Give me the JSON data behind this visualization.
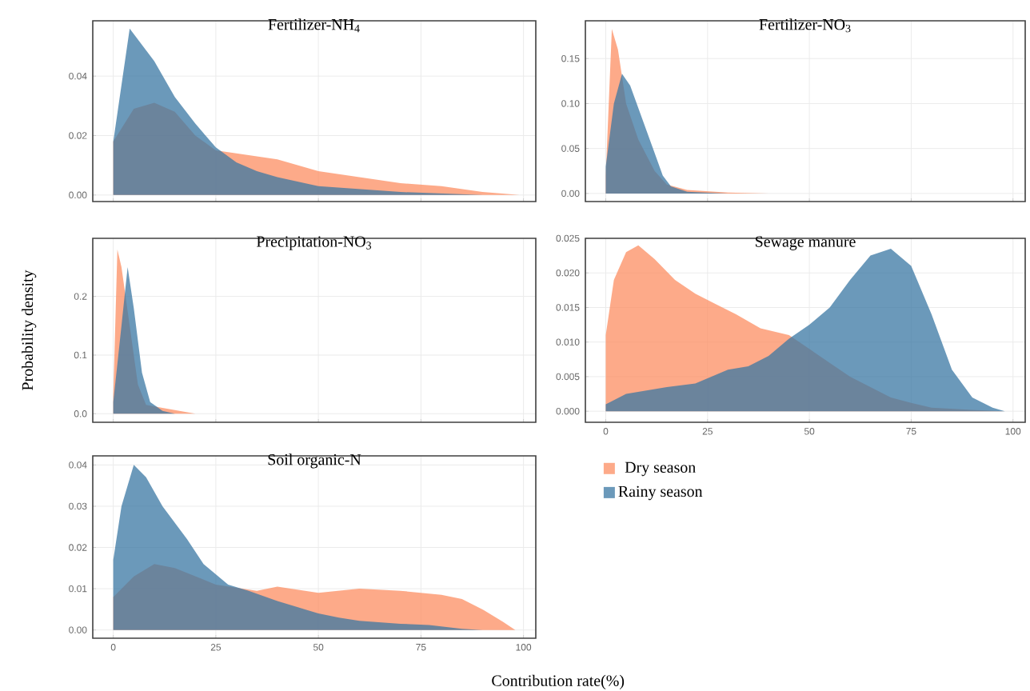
{
  "chart_data": [
    {
      "type": "area",
      "title": "Fertilizer-NH$_{4}$",
      "xlim": [
        -5,
        103
      ],
      "ylim": [
        -0.0022,
        0.0586
      ],
      "xticks": [
        0,
        25,
        50,
        75,
        100
      ],
      "yticks": [
        {
          "value": 0,
          "label": "0.00"
        },
        {
          "value": 0.02,
          "label": "0.02"
        },
        {
          "value": 0.04,
          "label": "0.04"
        }
      ],
      "tick_labels": "y",
      "grid": true,
      "series": [
        {
          "color": "#fc8d62",
          "x": [
            0,
            5,
            10,
            15,
            20,
            25,
            30,
            40,
            50,
            60,
            70,
            80,
            90,
            99
          ],
          "values": [
            0.018,
            0.029,
            0.031,
            0.028,
            0.02,
            0.015,
            0.014,
            0.012,
            0.008,
            0.006,
            0.004,
            0.003,
            0.001,
            0
          ]
        },
        {
          "color": "#3a77a3",
          "x": [
            0,
            4,
            10,
            15,
            20,
            25,
            30,
            35,
            40,
            50,
            60,
            70,
            80,
            90
          ],
          "values": [
            0.018,
            0.056,
            0.045,
            0.033,
            0.024,
            0.016,
            0.011,
            0.008,
            0.006,
            0.003,
            0.002,
            0.001,
            0.0005,
            0
          ]
        }
      ]
    },
    {
      "type": "area",
      "title": "Fertilizer-NO$_{3}$",
      "xlim": [
        -5,
        103
      ],
      "ylim": [
        -0.009,
        0.192
      ],
      "xticks": [
        0,
        25,
        50,
        75,
        100
      ],
      "yticks": [
        {
          "value": 0,
          "label": "0.00"
        },
        {
          "value": 0.05,
          "label": "0.05"
        },
        {
          "value": 0.1,
          "label": "0.10"
        },
        {
          "value": 0.15,
          "label": "0.15"
        }
      ],
      "tick_labels": "y",
      "grid": true,
      "series": [
        {
          "color": "#fc8d62",
          "x": [
            0,
            1.5,
            3,
            5,
            8,
            12,
            15,
            20,
            30,
            40
          ],
          "values": [
            0.02,
            0.183,
            0.16,
            0.1,
            0.06,
            0.025,
            0.01,
            0.004,
            0.001,
            0
          ]
        },
        {
          "color": "#3a77a3",
          "x": [
            0,
            2,
            4,
            6,
            8,
            10,
            12,
            14,
            16,
            20,
            30
          ],
          "values": [
            0.03,
            0.1,
            0.133,
            0.12,
            0.095,
            0.07,
            0.045,
            0.02,
            0.008,
            0.002,
            0
          ]
        }
      ]
    },
    {
      "type": "area",
      "title": "Precipitation-NO$_{3}$",
      "ylabel": "Probability density",
      "xlim": [
        -5,
        103
      ],
      "ylim": [
        -0.0146,
        0.299
      ],
      "xticks": [
        0,
        25,
        50,
        75,
        100
      ],
      "yticks": [
        {
          "value": 0,
          "label": "0.0"
        },
        {
          "value": 0.1,
          "label": "0.1"
        },
        {
          "value": 0.2,
          "label": "0.2"
        }
      ],
      "tick_labels": "y",
      "grid": true,
      "series": [
        {
          "color": "#fc8d62",
          "x": [
            0,
            1,
            2,
            4,
            6,
            8,
            12,
            20
          ],
          "values": [
            0.03,
            0.28,
            0.25,
            0.15,
            0.05,
            0.015,
            0.01,
            0
          ]
        },
        {
          "color": "#3a77a3",
          "x": [
            0,
            2,
            3.5,
            5,
            7,
            9,
            12,
            15
          ],
          "values": [
            0.02,
            0.15,
            0.25,
            0.18,
            0.07,
            0.02,
            0.005,
            0
          ]
        }
      ]
    },
    {
      "type": "area",
      "title": "Sewage manure",
      "xlim": [
        -5,
        103
      ],
      "ylim": [
        -0.0016,
        0.025
      ],
      "xticks": [
        0,
        25,
        50,
        75,
        100
      ],
      "yticks": [
        {
          "value": 0,
          "label": "0.000"
        },
        {
          "value": 0.005,
          "label": "0.005"
        },
        {
          "value": 0.01,
          "label": "0.010"
        },
        {
          "value": 0.015,
          "label": "0.015"
        },
        {
          "value": 0.02,
          "label": "0.020"
        },
        {
          "value": 0.025,
          "label": "0.025"
        }
      ],
      "grid": true,
      "legend": "bottom",
      "series": [
        {
          "name": "Dry season",
          "color": "#fc8d62",
          "x": [
            0,
            2,
            5,
            8,
            12,
            17,
            22,
            27,
            32,
            38,
            45,
            50,
            55,
            60,
            65,
            70,
            75,
            80,
            90,
            98
          ],
          "values": [
            0.011,
            0.019,
            0.023,
            0.024,
            0.022,
            0.019,
            0.017,
            0.0155,
            0.014,
            0.012,
            0.011,
            0.009,
            0.007,
            0.005,
            0.0035,
            0.002,
            0.0012,
            0.0005,
            0.0002,
            0
          ]
        },
        {
          "name": "Rainy season",
          "color": "#3a77a3",
          "x": [
            0,
            5,
            10,
            15,
            22,
            30,
            35,
            40,
            45,
            50,
            55,
            60,
            65,
            70,
            75,
            80,
            85,
            90,
            95,
            98
          ],
          "values": [
            0.001,
            0.0025,
            0.003,
            0.0035,
            0.004,
            0.006,
            0.0065,
            0.008,
            0.0105,
            0.0125,
            0.015,
            0.019,
            0.0225,
            0.0235,
            0.021,
            0.014,
            0.006,
            0.002,
            0.0005,
            0
          ]
        }
      ]
    },
    {
      "type": "area",
      "title": "Soil organic-N",
      "xlabel": "Contribution rate(%)",
      "xlim": [
        -5,
        103
      ],
      "ylim": [
        -0.002,
        0.0422
      ],
      "xticks": [
        0,
        25,
        50,
        75,
        100
      ],
      "yticks": [
        {
          "value": 0,
          "label": "0.00"
        },
        {
          "value": 0.01,
          "label": "0.01"
        },
        {
          "value": 0.02,
          "label": "0.02"
        },
        {
          "value": 0.03,
          "label": "0.03"
        },
        {
          "value": 0.04,
          "label": "0.04"
        }
      ],
      "grid": true,
      "series": [
        {
          "color": "#fc8d62",
          "x": [
            0,
            5,
            10,
            15,
            25,
            35,
            40,
            50,
            60,
            70,
            80,
            85,
            90,
            95,
            98
          ],
          "values": [
            0.008,
            0.013,
            0.016,
            0.015,
            0.011,
            0.0095,
            0.0105,
            0.009,
            0.01,
            0.0095,
            0.0085,
            0.0075,
            0.005,
            0.002,
            0
          ]
        },
        {
          "color": "#3a77a3",
          "x": [
            0,
            2,
            5,
            8,
            12,
            18,
            22,
            28,
            33,
            40,
            45,
            50,
            55,
            60,
            70,
            77,
            85,
            90
          ],
          "values": [
            0.017,
            0.03,
            0.04,
            0.037,
            0.03,
            0.022,
            0.016,
            0.011,
            0.0095,
            0.007,
            0.0055,
            0.004,
            0.003,
            0.0022,
            0.0015,
            0.0012,
            0.0003,
            0
          ]
        }
      ]
    }
  ]
}
